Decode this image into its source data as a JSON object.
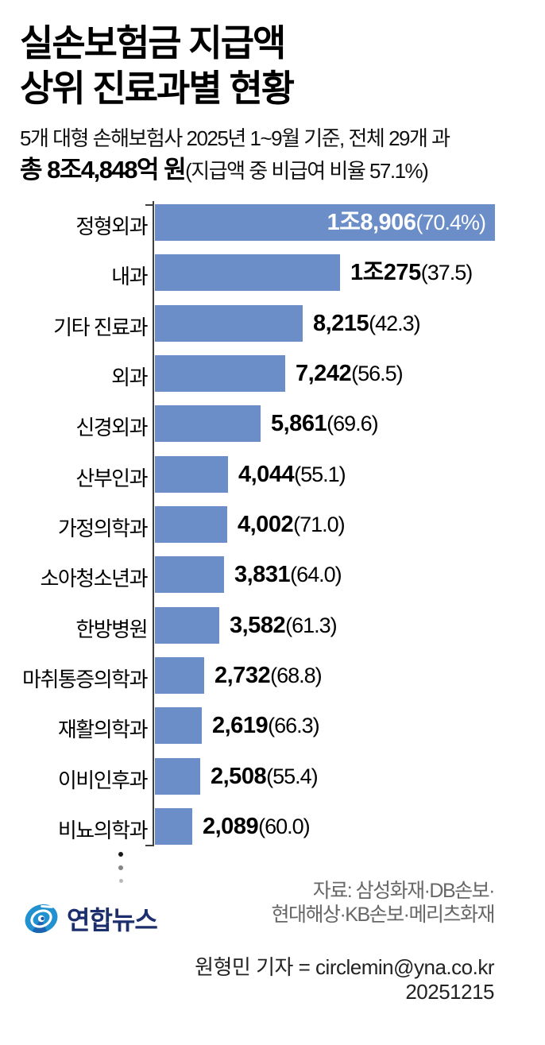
{
  "header": {
    "title_line1": "실손보험금 지급액",
    "title_line2": "상위 진료과별 현황",
    "subtitle": "5개 대형 손해보험사 2025년 1~9월 기준, 전체 29개 과",
    "total_bold": "총 8조4,848억 원",
    "total_note": "(지급액 중 비급여 비율 57.1%)"
  },
  "chart_data": {
    "type": "bar",
    "orientation": "horizontal",
    "unit": "억 원",
    "note": "괄호 안은 지급액 중 비급여 비율(%)",
    "bar_color": "#6b8ec8",
    "max_value": 18906,
    "categories": [
      "정형외과",
      "내과",
      "기타 진료과",
      "외과",
      "신경외과",
      "산부인과",
      "가정의학과",
      "소아청소년과",
      "한방병원",
      "마취통증의학과",
      "재활의학과",
      "이비인후과",
      "비뇨의학과"
    ],
    "values": [
      18906,
      10275,
      8215,
      7242,
      5861,
      4044,
      4002,
      3831,
      3582,
      2732,
      2619,
      2508,
      2089
    ],
    "value_labels": [
      "1조8,906",
      "1조275",
      "8,215",
      "7,242",
      "5,861",
      "4,044",
      "4,002",
      "3,831",
      "3,582",
      "2,732",
      "2,619",
      "2,508",
      "2,089"
    ],
    "pct_values": [
      70.4,
      37.5,
      42.3,
      56.5,
      69.6,
      55.1,
      71.0,
      64.0,
      61.3,
      68.8,
      66.3,
      55.4,
      60.0
    ],
    "pct_labels": [
      "(70.4%)",
      "(37.5)",
      "(42.3)",
      "(56.5)",
      "(69.6)",
      "(55.1)",
      "(71.0)",
      "(64.0)",
      "(61.3)",
      "(68.8)",
      "(66.3)",
      "(55.4)",
      "(60.0)"
    ],
    "inside_label_index": 0,
    "axis_color": "#3f3f3f"
  },
  "footer": {
    "logo_text": "연합뉴스",
    "logo_blue": "#2191d0",
    "logo_navy": "#1c2e6b",
    "source_line1": "자료: 삼성화재·DB손보·",
    "source_line2": "현대해상·KB손보·메리츠화재",
    "credit": "원형민 기자 = circlemin@yna.co.kr",
    "date": "20251215"
  }
}
